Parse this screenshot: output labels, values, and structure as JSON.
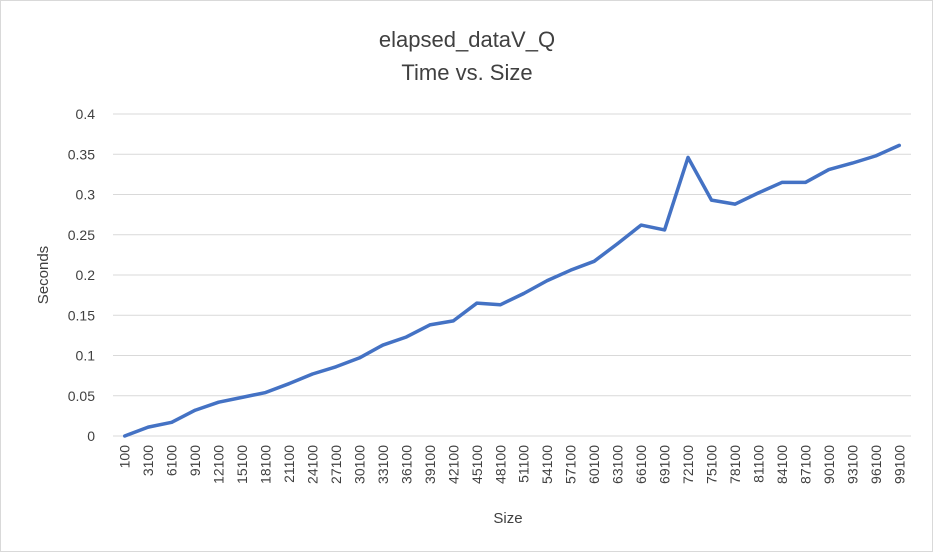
{
  "chart_data": {
    "type": "line",
    "title": "elapsed_dataV_Q",
    "subtitle": "Time vs. Size",
    "xlabel": "Size",
    "ylabel": "Seconds",
    "ylim": [
      0,
      0.4
    ],
    "yticks": [
      "0",
      "0.05",
      "0.1",
      "0.15",
      "0.2",
      "0.25",
      "0.3",
      "0.35",
      "0.4"
    ],
    "grid": true,
    "legend": "none",
    "line_color": "#4472C4",
    "categories": [
      "100",
      "3100",
      "6100",
      "9100",
      "12100",
      "15100",
      "18100",
      "21100",
      "24100",
      "27100",
      "30100",
      "33100",
      "36100",
      "39100",
      "42100",
      "45100",
      "48100",
      "51100",
      "54100",
      "57100",
      "60100",
      "63100",
      "66100",
      "69100",
      "72100",
      "75100",
      "78100",
      "81100",
      "84100",
      "87100",
      "90100",
      "93100",
      "96100",
      "99100"
    ],
    "series": [
      {
        "values": [
          0.0,
          0.011,
          0.017,
          0.032,
          0.042,
          0.048,
          0.054,
          0.065,
          0.077,
          0.086,
          0.097,
          0.113,
          0.123,
          0.138,
          0.143,
          0.165,
          0.163,
          0.177,
          0.193,
          0.206,
          0.217,
          0.239,
          0.262,
          0.256,
          0.346,
          0.293,
          0.288,
          0.302,
          0.315,
          0.315,
          0.331,
          0.339,
          0.348,
          0.361
        ]
      }
    ]
  }
}
